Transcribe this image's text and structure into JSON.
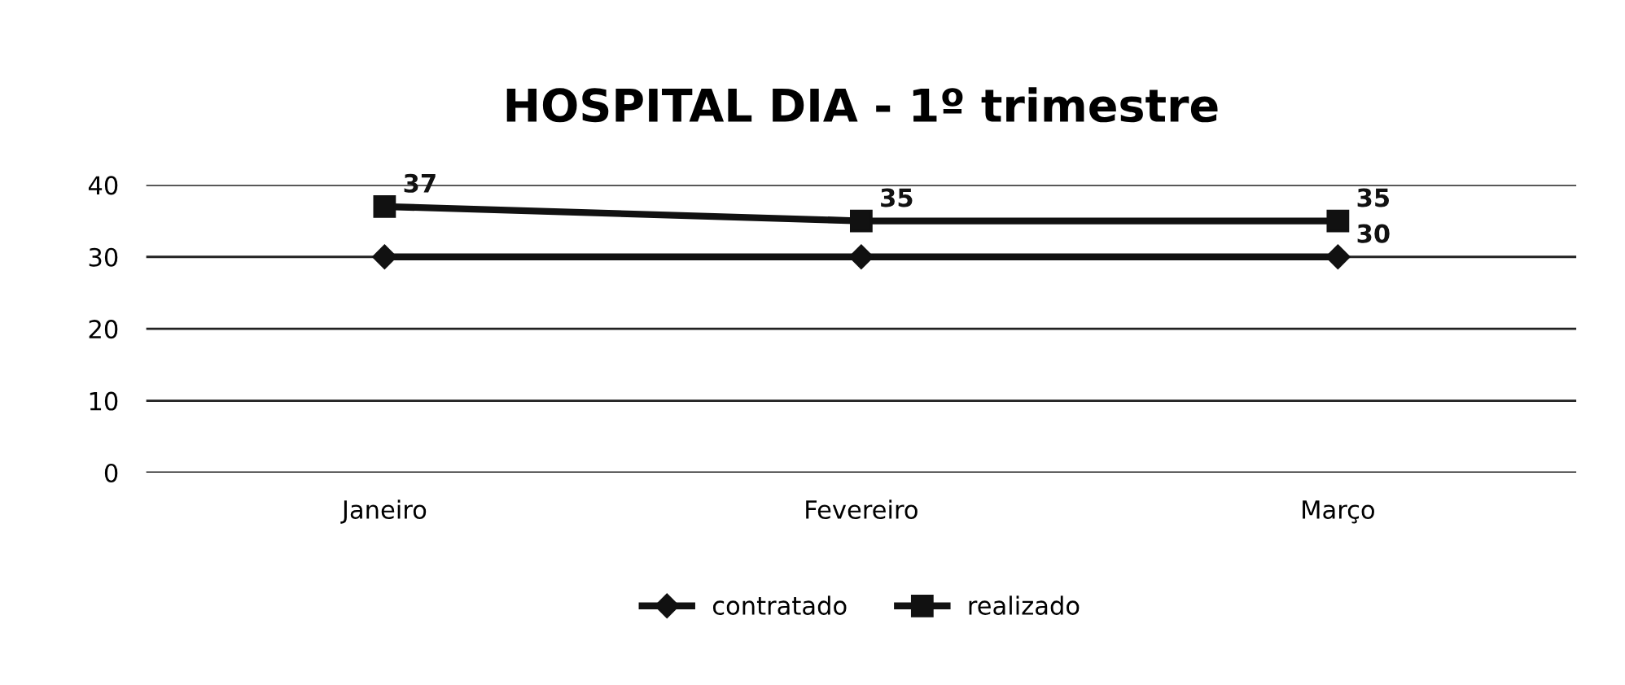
{
  "chart_data": {
    "type": "line",
    "title": "HOSPITAL DIA - 1º trimestre",
    "categories": [
      "Janeiro",
      "Fevereiro",
      "Março"
    ],
    "series": [
      {
        "name": "contratado",
        "color": "#111111",
        "values": [
          30,
          30,
          30
        ],
        "marker": "diamond",
        "value_labels": [
          null,
          null,
          "30"
        ]
      },
      {
        "name": "realizado",
        "color": "#111111",
        "values": [
          37,
          35,
          35
        ],
        "marker": "square",
        "value_labels": [
          "37",
          "35",
          "35"
        ]
      }
    ],
    "ylim": [
      0,
      40
    ],
    "yticks": [
      0,
      10,
      20,
      30,
      40
    ],
    "grid": "y",
    "legend": "bottom",
    "line_style": "solid"
  }
}
